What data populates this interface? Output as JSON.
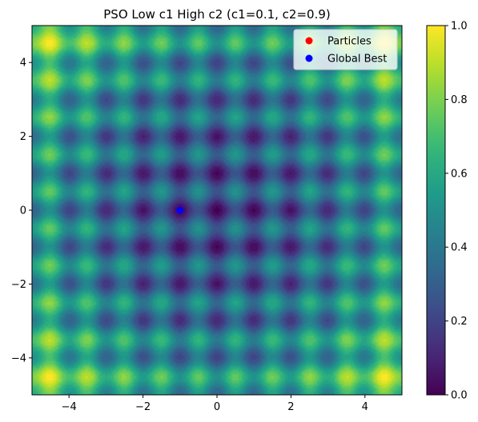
{
  "chart_data": {
    "type": "heatmap",
    "title": "PSO Low c1 High c2 (c1=0.1, c2=0.9)",
    "xlabel": "",
    "ylabel": "",
    "xlim": [
      -5,
      5
    ],
    "ylim": [
      -5,
      5
    ],
    "xticks": [
      -4,
      -2,
      0,
      2,
      4
    ],
    "yticks": [
      -4,
      -2,
      0,
      2,
      4
    ],
    "xtick_labels": [
      "−4",
      "−2",
      "0",
      "2",
      "4"
    ],
    "ytick_labels": [
      "−4",
      "−2",
      "0",
      "2",
      "4"
    ],
    "surface": "normalized Rastrigin-like function over [-5,5] x [-5,5], minimum 0 at origin",
    "colormap": "viridis",
    "colorbar": {
      "range": [
        0.0,
        1.0
      ],
      "ticks": [
        0.0,
        0.2,
        0.4,
        0.6,
        0.8,
        1.0
      ],
      "tick_labels": [
        "0.0",
        "0.2",
        "0.4",
        "0.6",
        "0.8",
        "1.0"
      ]
    },
    "series": [
      {
        "name": "Particles",
        "color": "#ff0000",
        "points": []
      },
      {
        "name": "Global Best",
        "color": "#0000ff",
        "points": [
          [
            -1.0,
            0.0
          ]
        ]
      }
    ],
    "legend": {
      "placement": "top-right",
      "entries": [
        {
          "label": "Particles",
          "color": "#ff0000"
        },
        {
          "label": "Global Best",
          "color": "#0000ff"
        }
      ]
    },
    "grid": false
  }
}
